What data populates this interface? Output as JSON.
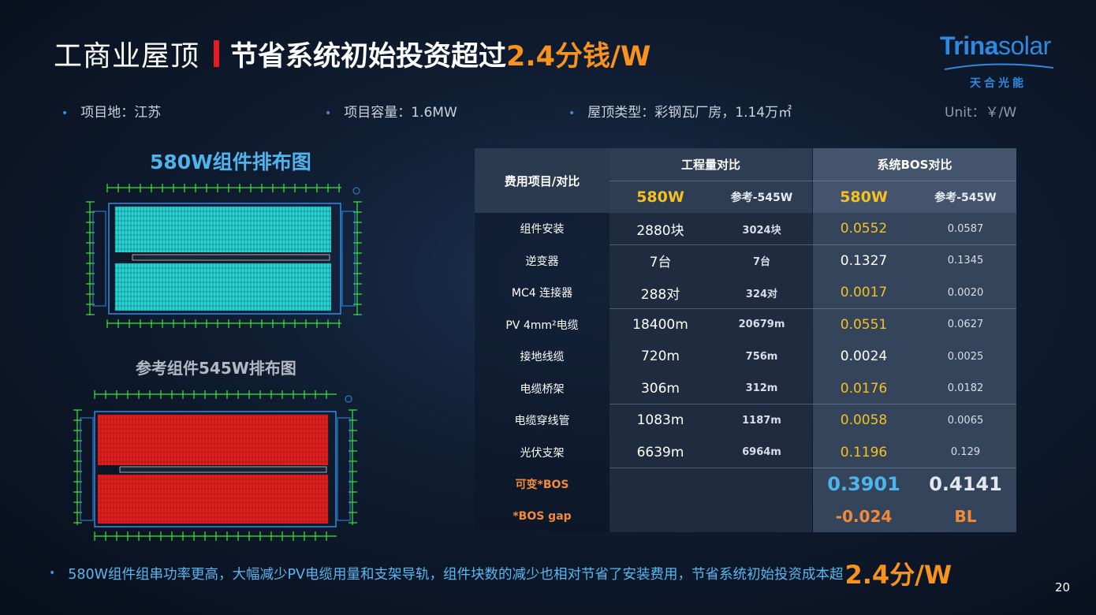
{
  "title": {
    "part1": "工商业屋顶",
    "part2": "节省系统初始投资超过",
    "part3": "2.4分钱/W"
  },
  "logo": {
    "word_bold": "Trina",
    "word_light": "solar",
    "sub": "天合光能",
    "colors": {
      "brand": "#2f89e0"
    }
  },
  "info": [
    {
      "label": "项目地：江苏"
    },
    {
      "label": "项目容量：1.6MW"
    },
    {
      "label": "屋顶类型：彩钢瓦厂房，1.14万㎡"
    }
  ],
  "unit": "Unit：￥/W",
  "layouts": {
    "h580": "580W组件排布图",
    "h545": "参考组件545W排布图",
    "colors": {
      "panel_580": "#2ad4d4",
      "panel_545": "#e02020",
      "frame": "#35e835",
      "outline": "#2f8ce8"
    }
  },
  "table": {
    "col_header": "费用项目/对比",
    "group1": "工程量对比",
    "group2": "系统BOS对比",
    "sub580": "580W",
    "sub545": "参考-545W",
    "rows": [
      {
        "item": "组件安装",
        "q580": "2880块",
        "q545": "3024块",
        "b580": "0.0552",
        "b545": "0.0587",
        "hl": true
      },
      {
        "item": "逆变器",
        "q580": "7台",
        "q545": "7台",
        "b580": "0.1327",
        "b545": "0.1345",
        "hl": false
      },
      {
        "item": "MC4 连接器",
        "q580": "288对",
        "q545": "324对",
        "b580": "0.0017",
        "b545": "0.0020",
        "hl": true
      },
      {
        "item": "PV 4mm²电缆",
        "q580": "18400m",
        "q545": "20679m",
        "b580": "0.0551",
        "b545": "0.0627",
        "hl": true
      },
      {
        "item": "接地线缆",
        "q580": "720m",
        "q545": "756m",
        "b580": "0.0024",
        "b545": "0.0025",
        "hl": false
      },
      {
        "item": "电缆桥架",
        "q580": "306m",
        "q545": "312m",
        "b580": "0.0176",
        "b545": "0.0182",
        "hl": true
      },
      {
        "item": "电缆穿线管",
        "q580": "1083m",
        "q545": "1187m",
        "b580": "0.0058",
        "b545": "0.0065",
        "hl": true
      },
      {
        "item": "光伏支架",
        "q580": "6639m",
        "q545": "6964m",
        "b580": "0.1196",
        "b545": "0.129",
        "hl": true
      }
    ],
    "variable_bos": {
      "label": "可变*BOS",
      "v580": "0.3901",
      "v545": "0.4141"
    },
    "bos_gap": {
      "label": "*BOS gap",
      "v580": "-0.024",
      "v545": "BL"
    },
    "colors": {
      "yellow": "#f5c122",
      "orange": "#f08a3c",
      "blue": "#4fb3ec"
    }
  },
  "bottom": {
    "text": "580W组件组串功率更高，大幅减少PV电缆用量和支架导轨，组件块数的减少也相对节省了安装费用，节省系统初始投资成本超",
    "emphasis": "2.4分/W"
  },
  "page_number": "20"
}
